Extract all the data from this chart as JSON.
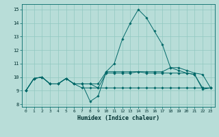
{
  "xlabel": "Humidex (Indice chaleur)",
  "background_color": "#b8ddd8",
  "grid_color": "#90c8c0",
  "line_color": "#006868",
  "xlim": [
    -0.5,
    23.5
  ],
  "ylim": [
    7.8,
    15.4
  ],
  "yticks": [
    8,
    9,
    10,
    11,
    12,
    13,
    14,
    15
  ],
  "xticks": [
    0,
    1,
    2,
    3,
    4,
    5,
    6,
    7,
    8,
    9,
    10,
    11,
    12,
    13,
    14,
    15,
    16,
    17,
    18,
    19,
    20,
    21,
    22,
    23
  ],
  "series": [
    [
      9,
      9.9,
      10,
      9.5,
      9.5,
      9.9,
      9.5,
      9.5,
      8.2,
      8.6,
      10.4,
      11.0,
      12.8,
      14.0,
      15.0,
      14.4,
      13.4,
      12.4,
      10.7,
      10.5,
      10.3,
      10.2,
      9.1,
      9.2
    ],
    [
      9,
      9.9,
      10,
      9.5,
      9.5,
      9.9,
      9.5,
      9.5,
      9.5,
      9.5,
      10.4,
      10.4,
      10.4,
      10.4,
      10.4,
      10.4,
      10.4,
      10.4,
      10.7,
      10.7,
      10.5,
      10.3,
      10.2,
      9.2
    ],
    [
      9,
      9.9,
      10,
      9.5,
      9.5,
      9.9,
      9.5,
      9.5,
      9.5,
      9.2,
      10.3,
      10.3,
      10.3,
      10.3,
      10.4,
      10.3,
      10.3,
      10.3,
      10.3,
      10.3,
      10.3,
      10.2,
      9.2,
      9.2
    ],
    [
      9,
      9.9,
      10,
      9.5,
      9.5,
      9.9,
      9.5,
      9.2,
      9.2,
      9.2,
      9.2,
      9.2,
      9.2,
      9.2,
      9.2,
      9.2,
      9.2,
      9.2,
      9.2,
      9.2,
      9.2,
      9.2,
      9.2,
      9.2
    ]
  ]
}
